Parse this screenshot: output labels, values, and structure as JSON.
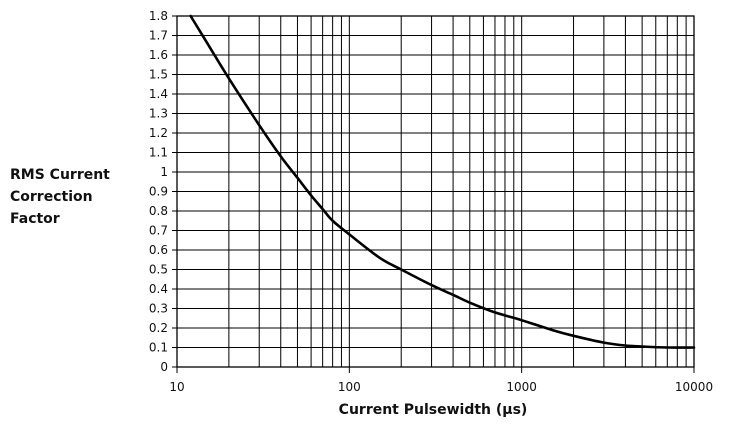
{
  "chart_data": {
    "type": "line",
    "title": "",
    "xlabel": "Current Pulsewidth (µs)",
    "ylabel": [
      "RMS Current",
      "Correction",
      "Factor"
    ],
    "x_scale": "log",
    "xlim": [
      10,
      10000
    ],
    "ylim": [
      0,
      1.8
    ],
    "x_ticks": [
      "10",
      "100",
      "1000",
      "10000"
    ],
    "y_ticks": [
      "0",
      "0.1",
      "0.2",
      "0.3",
      "0.4",
      "0.5",
      "0.6",
      "0.7",
      "0.8",
      "0.9",
      "1",
      "1.1",
      "1.2",
      "1.3",
      "1.4",
      "1.5",
      "1.6",
      "1.7",
      "1.8"
    ],
    "grid": true,
    "legend": "none",
    "series": [
      {
        "color": "#000000",
        "x": [
          12,
          15,
          20,
          30,
          40,
          50,
          60,
          70,
          80,
          100,
          150,
          200,
          300,
          400,
          500,
          700,
          1000,
          1500,
          2000,
          3000,
          4000,
          5000,
          7000,
          10000
        ],
        "y": [
          1.8,
          1.66,
          1.48,
          1.24,
          1.08,
          0.97,
          0.88,
          0.81,
          0.75,
          0.68,
          0.56,
          0.5,
          0.42,
          0.37,
          0.33,
          0.28,
          0.24,
          0.19,
          0.16,
          0.125,
          0.11,
          0.105,
          0.1,
          0.1
        ]
      }
    ]
  }
}
